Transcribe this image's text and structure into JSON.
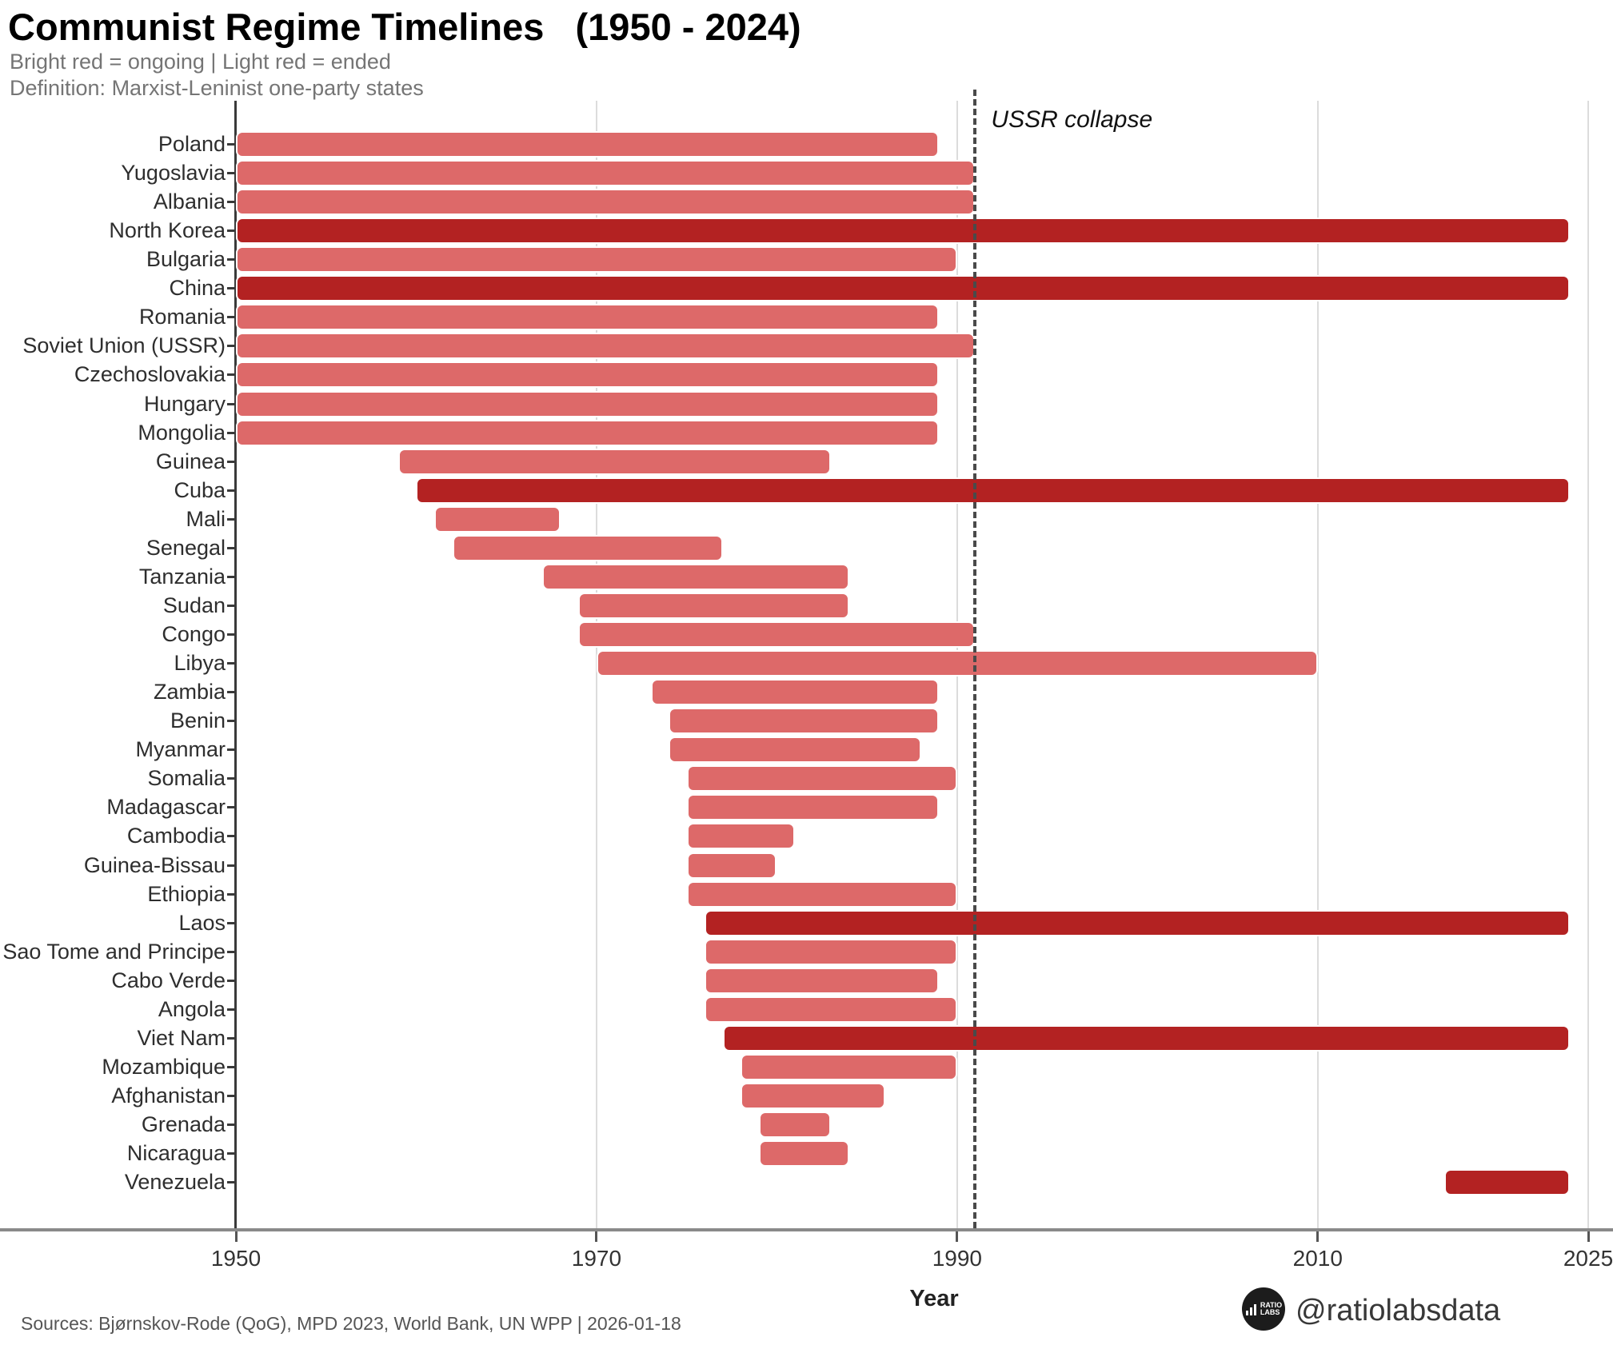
{
  "header": {
    "title": "Communist Regime Timelines   (1950 - 2024)",
    "subtitle_line1": "Bright red = ongoing | Light red = ended",
    "subtitle_line2": "Definition: Marxist-Leninist one-party states"
  },
  "annotation": {
    "label": "USSR collapse",
    "year": 1991
  },
  "axis": {
    "xlabel": "Year",
    "tick_labels": [
      "1950",
      "1970",
      "1990",
      "2010",
      "2025"
    ],
    "tick_years": [
      1950,
      1970,
      1990,
      2010,
      2025
    ],
    "gridline_years": [
      1970,
      1990,
      2010,
      2025
    ],
    "xmin": 1950,
    "xmax": 2025
  },
  "colors": {
    "ongoing": "#b32222",
    "ended": "#dd6969"
  },
  "footer": {
    "sources": "Sources: Bjørnskov-Rode (QoG), MPD 2023, World Bank, UN WPP | 2026-01-18",
    "handle": "@ratiolabsdata",
    "logo_line1": "RATIO",
    "logo_line2": "LABS"
  },
  "chart_data": {
    "type": "bar",
    "subtype": "horizontal-timeline-gantt",
    "title": "Communist Regime Timelines (1950 - 2024)",
    "xlabel": "Year",
    "xlim": [
      1950,
      2025
    ],
    "grid": "vertical gridlines at 1970, 1990, 2010, 2025",
    "reference_line": {
      "x": 1991,
      "style": "dashed",
      "label": "USSR collapse"
    },
    "legend": {
      "bright_red": "ongoing",
      "light_red": "ended"
    },
    "series": [
      {
        "country": "Poland",
        "start": 1950,
        "end": 1989,
        "status": "ended"
      },
      {
        "country": "Yugoslavia",
        "start": 1950,
        "end": 1991,
        "status": "ended"
      },
      {
        "country": "Albania",
        "start": 1950,
        "end": 1991,
        "status": "ended"
      },
      {
        "country": "North Korea",
        "start": 1950,
        "end": 2024,
        "status": "ongoing"
      },
      {
        "country": "Bulgaria",
        "start": 1950,
        "end": 1990,
        "status": "ended"
      },
      {
        "country": "China",
        "start": 1950,
        "end": 2024,
        "status": "ongoing"
      },
      {
        "country": "Romania",
        "start": 1950,
        "end": 1989,
        "status": "ended"
      },
      {
        "country": "Soviet Union (USSR)",
        "start": 1950,
        "end": 1991,
        "status": "ended"
      },
      {
        "country": "Czechoslovakia",
        "start": 1950,
        "end": 1989,
        "status": "ended"
      },
      {
        "country": "Hungary",
        "start": 1950,
        "end": 1989,
        "status": "ended"
      },
      {
        "country": "Mongolia",
        "start": 1950,
        "end": 1989,
        "status": "ended"
      },
      {
        "country": "Guinea",
        "start": 1959,
        "end": 1983,
        "status": "ended"
      },
      {
        "country": "Cuba",
        "start": 1960,
        "end": 2024,
        "status": "ongoing"
      },
      {
        "country": "Mali",
        "start": 1961,
        "end": 1968,
        "status": "ended"
      },
      {
        "country": "Senegal",
        "start": 1962,
        "end": 1977,
        "status": "ended"
      },
      {
        "country": "Tanzania",
        "start": 1967,
        "end": 1984,
        "status": "ended"
      },
      {
        "country": "Sudan",
        "start": 1969,
        "end": 1984,
        "status": "ended"
      },
      {
        "country": "Congo",
        "start": 1969,
        "end": 1991,
        "status": "ended"
      },
      {
        "country": "Libya",
        "start": 1970,
        "end": 2010,
        "status": "ended"
      },
      {
        "country": "Zambia",
        "start": 1973,
        "end": 1989,
        "status": "ended"
      },
      {
        "country": "Benin",
        "start": 1974,
        "end": 1989,
        "status": "ended"
      },
      {
        "country": "Myanmar",
        "start": 1974,
        "end": 1988,
        "status": "ended"
      },
      {
        "country": "Somalia",
        "start": 1975,
        "end": 1990,
        "status": "ended"
      },
      {
        "country": "Madagascar",
        "start": 1975,
        "end": 1989,
        "status": "ended"
      },
      {
        "country": "Cambodia",
        "start": 1975,
        "end": 1981,
        "status": "ended"
      },
      {
        "country": "Guinea-Bissau",
        "start": 1975,
        "end": 1980,
        "status": "ended"
      },
      {
        "country": "Ethiopia",
        "start": 1975,
        "end": 1990,
        "status": "ended"
      },
      {
        "country": "Laos",
        "start": 1976,
        "end": 2024,
        "status": "ongoing"
      },
      {
        "country": "Sao Tome and Principe",
        "start": 1976,
        "end": 1990,
        "status": "ended"
      },
      {
        "country": "Cabo Verde",
        "start": 1976,
        "end": 1989,
        "status": "ended"
      },
      {
        "country": "Angola",
        "start": 1976,
        "end": 1990,
        "status": "ended"
      },
      {
        "country": "Viet Nam",
        "start": 1977,
        "end": 2024,
        "status": "ongoing"
      },
      {
        "country": "Mozambique",
        "start": 1978,
        "end": 1990,
        "status": "ended"
      },
      {
        "country": "Afghanistan",
        "start": 1978,
        "end": 1986,
        "status": "ended"
      },
      {
        "country": "Grenada",
        "start": 1979,
        "end": 1983,
        "status": "ended"
      },
      {
        "country": "Nicaragua",
        "start": 1979,
        "end": 1984,
        "status": "ended"
      },
      {
        "country": "Venezuela",
        "start": 2017,
        "end": 2024,
        "status": "ongoing"
      }
    ]
  }
}
